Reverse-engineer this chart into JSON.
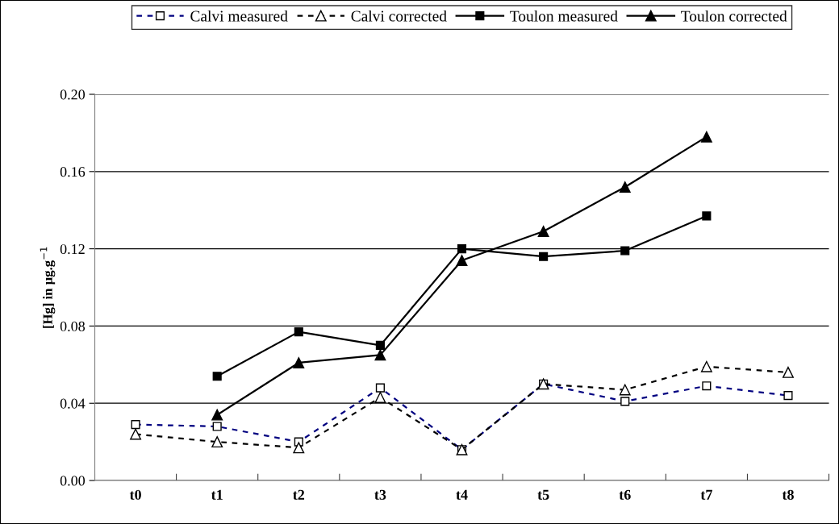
{
  "chart_data": {
    "type": "line",
    "ylabel": "[Hg] in µg.g$^{−1}$",
    "categories": [
      "t0",
      "t1",
      "t2",
      "t3",
      "t4",
      "t5",
      "t6",
      "t7",
      "t8"
    ],
    "ylim": [
      0,
      0.2
    ],
    "yticks": [
      {
        "value": 0,
        "label": "0.00"
      },
      {
        "value": 0.04,
        "label": "0.04"
      },
      {
        "value": 0.08,
        "label": "0.08"
      },
      {
        "value": 0.12,
        "label": "0.12"
      },
      {
        "value": 0.16,
        "label": "0.16"
      },
      {
        "value": 0.2,
        "label": "0.20"
      }
    ],
    "grid": "y",
    "legend": "top",
    "series": [
      {
        "name": "Calvi measured",
        "color": "#000080",
        "marker": "square",
        "line_style": "dashed",
        "values": [
          0.029,
          0.028,
          0.02,
          0.048,
          0.016,
          0.05,
          0.041,
          0.049,
          0.044
        ]
      },
      {
        "name": "Calvi corrected",
        "color": "#000000",
        "marker": "triangle",
        "line_style": "dashed",
        "values": [
          0.024,
          0.02,
          0.017,
          0.043,
          0.016,
          0.05,
          0.047,
          0.059,
          0.056
        ]
      },
      {
        "name": "Toulon measured",
        "color": "#000000",
        "marker": "square",
        "line_style": "solid",
        "values": [
          null,
          0.054,
          0.077,
          0.07,
          0.12,
          0.116,
          0.119,
          0.137,
          null
        ]
      },
      {
        "name": "Toulon corrected",
        "color": "#000000",
        "marker": "triangle",
        "line_style": "solid",
        "values": [
          null,
          0.034,
          0.061,
          0.065,
          0.114,
          0.129,
          0.152,
          0.178,
          null
        ]
      }
    ]
  }
}
